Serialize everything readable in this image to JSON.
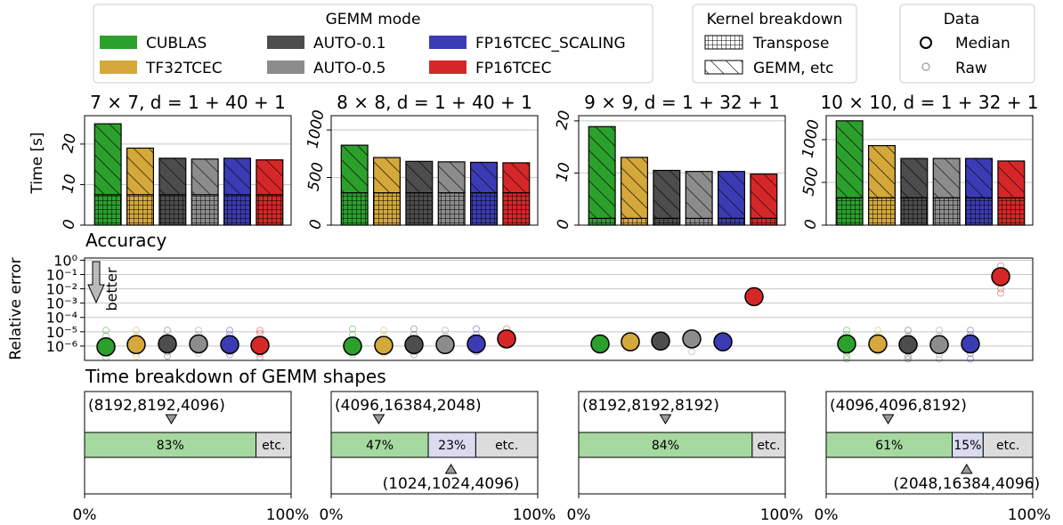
{
  "legend": {
    "gemm_mode": {
      "title": "GEMM mode",
      "entries": [
        {
          "name": "CUBLAS",
          "color": "#2ca02c"
        },
        {
          "name": "AUTO-0.1",
          "color": "#4d4d4d"
        },
        {
          "name": "FP16TCEC_SCALING",
          "color": "#3b3bb3"
        },
        {
          "name": "TF32TCEC",
          "color": "#d4a83a"
        },
        {
          "name": "AUTO-0.5",
          "color": "#8c8c8c"
        },
        {
          "name": "FP16TCEC",
          "color": "#d62728"
        }
      ]
    },
    "kernel": {
      "title": "Kernel breakdown",
      "entries": [
        {
          "name": "Transpose",
          "hatch": "grid"
        },
        {
          "name": "GEMM, etc",
          "hatch": "diagonal"
        }
      ]
    },
    "data": {
      "title": "Data",
      "entries": [
        {
          "name": "Median",
          "marker": "large-circle"
        },
        {
          "name": "Raw",
          "marker": "small-circle"
        }
      ]
    }
  },
  "sections": {
    "accuracy": "Accuracy",
    "breakdown": "Time breakdown of GEMM shapes"
  },
  "chart_data": [
    {
      "type": "bar",
      "title": "7 × 7, d = 1 + 40 + 1",
      "ylabel": "Time [s]",
      "ylim": [
        0,
        27
      ],
      "yticks": [
        "0",
        "10",
        "20"
      ],
      "ytick_values": [
        0,
        10,
        20
      ],
      "categories": [
        "CUBLAS",
        "TF32TCEC",
        "AUTO-0.1",
        "AUTO-0.5",
        "FP16TCEC_SCALING",
        "FP16TCEC"
      ],
      "series": [
        {
          "name": "Transpose",
          "values": [
            7.5,
            7.5,
            7.5,
            7.5,
            7.5,
            7.5
          ]
        },
        {
          "name": "GEMM, etc",
          "values": [
            17.5,
            11.5,
            9,
            8.8,
            9,
            8.6
          ]
        }
      ]
    },
    {
      "type": "bar",
      "title": "8 × 8, d = 1 + 40 + 1",
      "ylabel": "",
      "ylim": [
        0,
        1150
      ],
      "yticks": [
        "0",
        "500",
        "1000"
      ],
      "ytick_values": [
        0,
        500,
        1000
      ],
      "categories": [
        "CUBLAS",
        "TF32TCEC",
        "AUTO-0.1",
        "AUTO-0.5",
        "FP16TCEC_SCALING",
        "FP16TCEC"
      ],
      "series": [
        {
          "name": "Transpose",
          "values": [
            340,
            340,
            340,
            340,
            340,
            340
          ]
        },
        {
          "name": "GEMM, etc",
          "values": [
            500,
            370,
            330,
            325,
            320,
            315
          ]
        }
      ]
    },
    {
      "type": "bar",
      "title": "9 × 9, d = 1 + 32 + 1",
      "ylabel": "",
      "ylim": [
        0,
        21
      ],
      "yticks": [
        "0",
        "10",
        "20"
      ],
      "ytick_values": [
        0,
        10,
        20
      ],
      "categories": [
        "CUBLAS",
        "TF32TCEC",
        "AUTO-0.1",
        "AUTO-0.5",
        "FP16TCEC_SCALING",
        "FP16TCEC"
      ],
      "series": [
        {
          "name": "Transpose",
          "values": [
            1.3,
            1.3,
            1.3,
            1.3,
            1.3,
            1.3
          ]
        },
        {
          "name": "GEMM, etc",
          "values": [
            17.6,
            11.7,
            9.2,
            9,
            9,
            8.5
          ]
        }
      ]
    },
    {
      "type": "bar",
      "title": "10 × 10, d = 1 + 32 + 1",
      "ylabel": "",
      "ylim": [
        0,
        1280
      ],
      "yticks": [
        "0",
        "500",
        "1000"
      ],
      "ytick_values": [
        0,
        500,
        1000
      ],
      "categories": [
        "CUBLAS",
        "TF32TCEC",
        "AUTO-0.1",
        "AUTO-0.5",
        "FP16TCEC_SCALING",
        "FP16TCEC"
      ],
      "series": [
        {
          "name": "Transpose",
          "values": [
            320,
            320,
            320,
            320,
            320,
            320
          ]
        },
        {
          "name": "GEMM, etc",
          "values": [
            900,
            610,
            460,
            460,
            460,
            430
          ]
        }
      ]
    },
    {
      "type": "scatter",
      "title": "Accuracy",
      "ylabel": "Relative error",
      "yscale": "log",
      "ylim_exp": [
        -7,
        0.15
      ],
      "yticks": [
        "10⁰",
        "10⁻¹",
        "10⁻²",
        "10⁻³",
        "10⁻⁴",
        "10⁻⁵",
        "10⁻⁶"
      ],
      "ytick_exp": [
        0,
        -1,
        -2,
        -3,
        -4,
        -5,
        -6
      ],
      "annotation": "better",
      "groups": [
        {
          "median_exp": [
            -6.05,
            -5.9,
            -5.85,
            -5.85,
            -5.9,
            -5.95
          ],
          "raw_exp": [
            [
              -4.9,
              -5.3,
              -6.2,
              -6.5,
              -6.8
            ],
            [
              -4.9,
              -5.3,
              -6.5,
              -6.7
            ],
            [
              -4.9,
              -5.4,
              -6.4,
              -6.7
            ],
            [
              -4.9,
              -5.2,
              -6.3,
              -6.5
            ],
            [
              -4.9,
              -5.2,
              -6.4,
              -6.6
            ],
            [
              -4.9,
              -5.1,
              -6.5,
              -6.8
            ]
          ]
        },
        {
          "median_exp": [
            -6.0,
            -5.95,
            -5.9,
            -5.9,
            -5.85,
            -5.5
          ],
          "raw_exp": [
            [
              -4.8,
              -5.2,
              -6.3,
              -6.6
            ],
            [
              -4.9,
              -5.3,
              -6.3,
              -6.5
            ],
            [
              -4.8,
              -5.2,
              -6.4,
              -6.6
            ],
            [
              -4.9,
              -5.3,
              -6.3
            ],
            [
              -4.8,
              -5.2,
              -6.4
            ],
            [
              -4.8,
              -5.3
            ]
          ]
        },
        {
          "median_exp": [
            -5.85,
            -5.7,
            -5.65,
            -5.5,
            -5.7,
            -2.55
          ],
          "raw_exp": [
            [
              -5.7
            ],
            [
              -5.7
            ],
            [
              -5.65
            ],
            [
              -6.4
            ],
            [
              -5.7
            ],
            [
              -2.55
            ]
          ]
        },
        {
          "median_exp": [
            -5.85,
            -5.85,
            -5.9,
            -5.9,
            -5.85,
            -1.15
          ],
          "raw_exp": [
            [
              -4.9,
              -5.2,
              -6.4,
              -6.7,
              -6.9
            ],
            [
              -4.9,
              -5.3,
              -6.4
            ],
            [
              -4.9,
              -5.3,
              -6.4,
              -6.7,
              -6.9
            ],
            [
              -4.9,
              -5.3,
              -6.3,
              -6.6,
              -6.9
            ],
            [
              -4.9,
              -5.2,
              -6.5,
              -6.9
            ],
            [
              -0.4,
              -0.8,
              -2.0,
              -2.3
            ]
          ]
        }
      ]
    },
    {
      "type": "bar",
      "title": "Time breakdown of GEMM shapes",
      "xticks": [
        "0%",
        "100%"
      ],
      "panels": [
        {
          "top_label": "(8192,8192,4096)",
          "top_marker": 42,
          "bottom_label": "",
          "bottom_marker": null,
          "segments": [
            {
              "value": 83,
              "label": "83%",
              "color": "#a6d9a0"
            },
            {
              "value": 17,
              "label": "etc.",
              "color": "#dcdcdc"
            }
          ]
        },
        {
          "top_label": "(4096,16384,2048)",
          "top_marker": 23,
          "bottom_label": "(1024,1024,4096)",
          "bottom_marker": 58,
          "segments": [
            {
              "value": 47,
              "label": "47%",
              "color": "#a6d9a0"
            },
            {
              "value": 23,
              "label": "23%",
              "color": "#dadbf0"
            },
            {
              "value": 30,
              "label": "etc.",
              "color": "#dcdcdc"
            }
          ]
        },
        {
          "top_label": "(8192,8192,8192)",
          "top_marker": 42,
          "bottom_label": "",
          "bottom_marker": null,
          "segments": [
            {
              "value": 84,
              "label": "84%",
              "color": "#a6d9a0"
            },
            {
              "value": 16,
              "label": "etc.",
              "color": "#dcdcdc"
            }
          ]
        },
        {
          "top_label": "(4096,4096,8192)",
          "top_marker": 30,
          "bottom_label": "(2048,16384,4096)",
          "bottom_marker": 68,
          "segments": [
            {
              "value": 61,
              "label": "61%",
              "color": "#a6d9a0"
            },
            {
              "value": 15,
              "label": "15%",
              "color": "#dadbf0"
            },
            {
              "value": 24,
              "label": "etc.",
              "color": "#dcdcdc"
            }
          ]
        }
      ]
    }
  ]
}
